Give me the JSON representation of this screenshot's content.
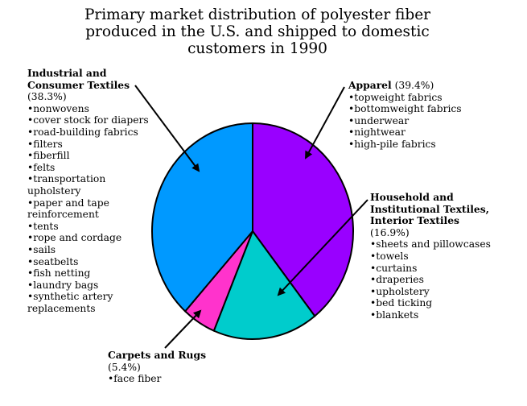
{
  "chart_data": {
    "type": "pie",
    "title": "Primary market distribution of polyester fiber produced in the U.S. and shipped to domestic customers in 1990",
    "title_lines": [
      "Primary market distribution of polyester fiber",
      "produced in the U.S. and shipped to domestic",
      "customers in 1990"
    ],
    "start": "12 o'clock",
    "direction": "clockwise",
    "slices": [
      {
        "name": "Apparel",
        "percent_label": "(39.4%)",
        "value": 39.4,
        "color": "#9900ff",
        "title_lines": [
          "Apparel"
        ],
        "items": [
          "•topweight fabrics",
          "•bottomweight fabrics",
          "•underwear",
          "•nightwear",
          "•high-pile fabrics"
        ]
      },
      {
        "name": "Household and Institutional Textiles, Interior Textiles",
        "percent_label": "(16.9%)",
        "value": 16.9,
        "color": "#00cccc",
        "title_lines": [
          "Household and",
          "Institutional Textiles,",
          "Interior Textiles"
        ],
        "items": [
          "•sheets and pillowcases",
          "•towels",
          "•curtains",
          "•draperies",
          "•upholstery",
          "•bed ticking",
          "•blankets"
        ]
      },
      {
        "name": "Carpets and Rugs",
        "percent_label": "(5.4%)",
        "value": 5.4,
        "color": "#ff33cc",
        "title_lines": [
          "Carpets and Rugs"
        ],
        "items": [
          "•face fiber"
        ]
      },
      {
        "name": "Industrial and Consumer Textiles",
        "percent_label": "(38.3%)",
        "value": 38.3,
        "color": "#0099ff",
        "title_lines": [
          "Industrial and",
          "Consumer Textiles"
        ],
        "items": [
          "•nonwovens",
          "•cover stock for diapers",
          "•road-building fabrics",
          "•filters",
          "•fiberfill",
          "•felts",
          "•transportation",
          "upholstery",
          "•paper and tape",
          "reinforcement",
          "•tents",
          "•rope and cordage",
          "•sails",
          "•seatbelts",
          "•fish netting",
          "•laundry bags",
          "•synthetic artery",
          "replacements"
        ]
      }
    ]
  }
}
